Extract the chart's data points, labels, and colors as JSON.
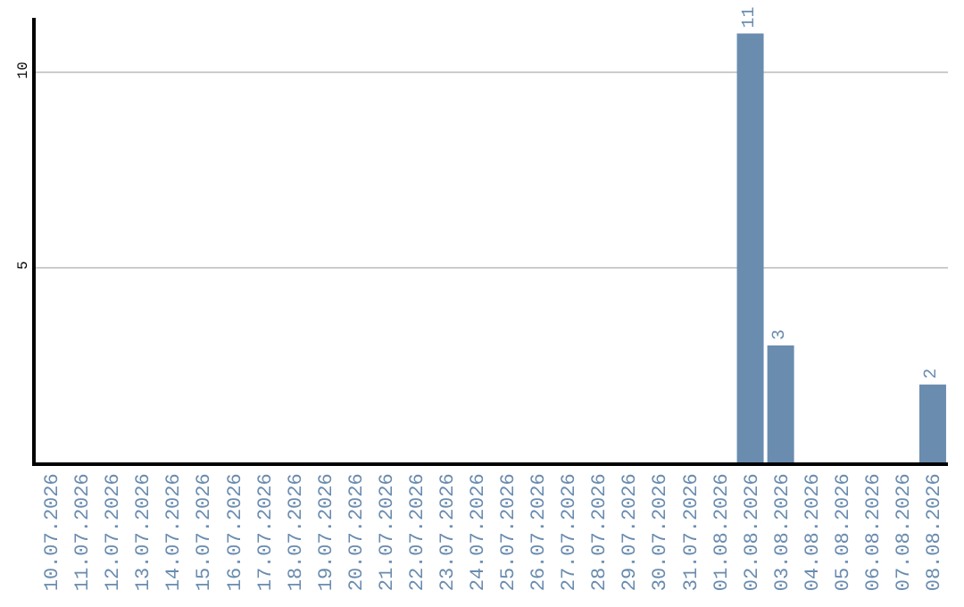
{
  "chart_data": {
    "type": "bar",
    "categories": [
      "10.07.2026",
      "11.07.2026",
      "12.07.2026",
      "13.07.2026",
      "14.07.2026",
      "15.07.2026",
      "16.07.2026",
      "17.07.2026",
      "18.07.2026",
      "19.07.2026",
      "20.07.2026",
      "21.07.2026",
      "22.07.2026",
      "23.07.2026",
      "24.07.2026",
      "25.07.2026",
      "26.07.2026",
      "27.07.2026",
      "28.07.2026",
      "29.07.2026",
      "30.07.2026",
      "31.07.2026",
      "01.08.2026",
      "02.08.2026",
      "03.08.2026",
      "04.08.2026",
      "05.08.2026",
      "06.08.2026",
      "07.08.2026",
      "08.08.2026"
    ],
    "values": [
      0,
      0,
      0,
      0,
      0,
      0,
      0,
      0,
      0,
      0,
      0,
      0,
      0,
      0,
      0,
      0,
      0,
      0,
      0,
      0,
      0,
      0,
      0,
      11,
      3,
      0,
      0,
      0,
      0,
      2
    ],
    "value_labels": [
      null,
      null,
      null,
      null,
      null,
      null,
      null,
      null,
      null,
      null,
      null,
      null,
      null,
      null,
      null,
      null,
      null,
      null,
      null,
      null,
      null,
      null,
      null,
      "11",
      "3",
      null,
      null,
      null,
      null,
      "2"
    ],
    "color": "#6a8caf",
    "ylim": [
      0,
      11.4
    ],
    "yticks": [
      5,
      10
    ],
    "grid": "y",
    "legend": false
  }
}
